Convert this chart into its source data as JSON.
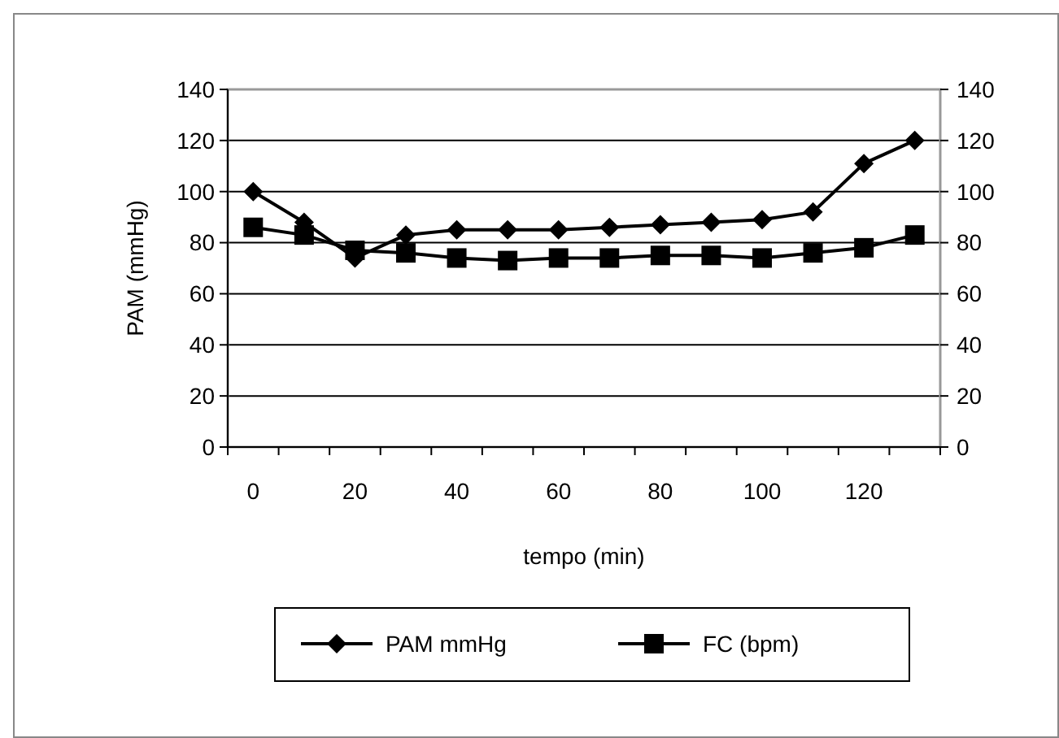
{
  "chart_data": {
    "type": "line",
    "xlabel": "tempo (min)",
    "ylabel": "PAM (mmHg)",
    "categories": [
      "0",
      null,
      "20",
      null,
      "40",
      null,
      "60",
      null,
      "80",
      null,
      "100",
      null,
      "120",
      null
    ],
    "series": [
      {
        "name": "PAM mmHg",
        "color": "#000000",
        "marker": "diamond",
        "values": [
          100,
          88,
          74,
          83,
          85,
          85,
          85,
          86,
          87,
          88,
          89,
          92,
          111,
          120
        ]
      },
      {
        "name": "FC (bpm)",
        "color": "#000000",
        "marker": "square",
        "values": [
          86,
          83,
          77,
          76,
          74,
          73,
          74,
          74,
          75,
          75,
          74,
          76,
          78,
          83
        ]
      }
    ],
    "ylim": [
      0,
      140
    ],
    "yticks": [
      0,
      20,
      40,
      60,
      80,
      100,
      120,
      140
    ],
    "y2lim": [
      0,
      140
    ],
    "y2ticks": [
      0,
      20,
      40,
      60,
      80,
      100,
      120,
      140
    ],
    "grid": "y",
    "legend": "bottom"
  }
}
